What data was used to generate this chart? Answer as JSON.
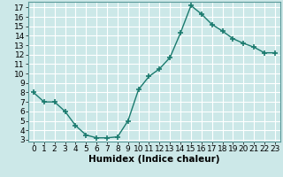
{
  "x": [
    0,
    1,
    2,
    3,
    4,
    5,
    6,
    7,
    8,
    9,
    10,
    11,
    12,
    13,
    14,
    15,
    16,
    17,
    18,
    19,
    20,
    21,
    22,
    23
  ],
  "y": [
    8.0,
    7.0,
    7.0,
    6.0,
    4.5,
    3.5,
    3.2,
    3.2,
    3.3,
    5.0,
    8.3,
    9.7,
    10.5,
    11.7,
    14.3,
    17.2,
    16.3,
    15.2,
    14.5,
    13.7,
    13.2,
    12.8,
    12.2,
    12.2
  ],
  "line_color": "#1a7a6e",
  "marker": "+",
  "marker_size": 4,
  "linewidth": 1.0,
  "bg_color": "#cce8e8",
  "grid_color": "#ffffff",
  "xlabel": "Humidex (Indice chaleur)",
  "xlim": [
    -0.5,
    23.5
  ],
  "ylim": [
    2.8,
    17.6
  ],
  "yticks": [
    3,
    4,
    5,
    6,
    7,
    8,
    9,
    10,
    11,
    12,
    13,
    14,
    15,
    16,
    17
  ],
  "xticks": [
    0,
    1,
    2,
    3,
    4,
    5,
    6,
    7,
    8,
    9,
    10,
    11,
    12,
    13,
    14,
    15,
    16,
    17,
    18,
    19,
    20,
    21,
    22,
    23
  ],
  "tick_label_fontsize": 6.5,
  "xlabel_fontsize": 7.5,
  "xlabel_fontweight": "bold",
  "spine_color": "#5a9a9a",
  "tick_color": "#5a9a9a"
}
